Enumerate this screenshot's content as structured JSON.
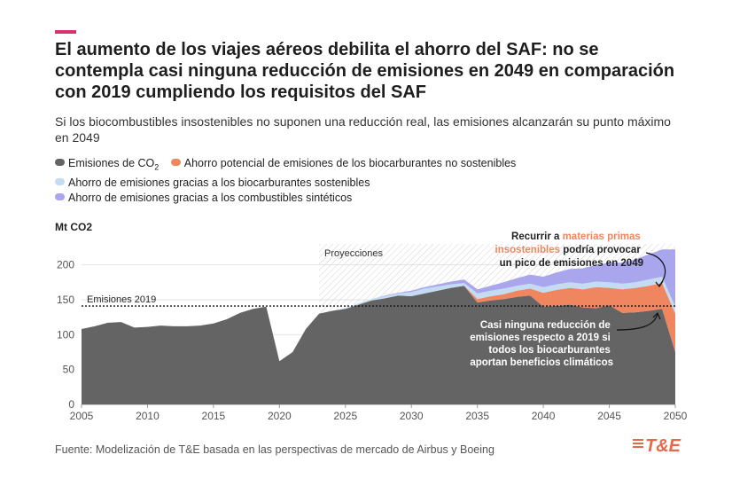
{
  "header": {
    "title": "El aumento de los viajes aéreos debilita el ahorro del SAF: no se contempla casi ninguna reducción de emisiones en 2049 en comparación con 2019 cumpliendo los requisitos del SAF",
    "subtitle": "Si los biocombustibles insostenibles no suponen una reducción real, las emisiones alcanzarán su punto máximo en 2049",
    "accent_color": "#d6336c"
  },
  "legend": {
    "item_co2_prefix": "Emisiones de CO",
    "item_co2_sub": "2",
    "item_unsust": "Ahorro potencial de emisiones de los biocarburantes no sostenibles",
    "item_sust": "Ahorro de emisiones gracias a los biocarburantes sostenibles",
    "item_synth": "Ahorro de emisiones gracias a los combustibles sintéticos"
  },
  "colors": {
    "co2": "#646464",
    "unsust": "#f0865f",
    "sust": "#c4dcf2",
    "synth": "#a9a6ee"
  },
  "chart_data": {
    "type": "area",
    "ylabel": "Mt CO2",
    "ylim": [
      0,
      230
    ],
    "xlim": [
      2005,
      2050
    ],
    "yticks": [
      "0",
      "50",
      "100",
      "150",
      "200"
    ],
    "ytick_values": [
      0,
      50,
      100,
      150,
      200
    ],
    "xticks": [
      "2005",
      "2010",
      "2015",
      "2020",
      "2025",
      "2030",
      "2035",
      "2040",
      "2045",
      "2050"
    ],
    "xtick_values": [
      2005,
      2010,
      2015,
      2020,
      2025,
      2030,
      2035,
      2040,
      2045,
      2050
    ],
    "grid": true,
    "x": [
      2005,
      2006,
      2007,
      2008,
      2009,
      2010,
      2011,
      2012,
      2013,
      2014,
      2015,
      2016,
      2017,
      2018,
      2019,
      2020,
      2021,
      2022,
      2023,
      2024,
      2025,
      2026,
      2027,
      2028,
      2029,
      2030,
      2031,
      2032,
      2033,
      2034,
      2035,
      2036,
      2037,
      2038,
      2039,
      2040,
      2041,
      2042,
      2043,
      2044,
      2045,
      2046,
      2047,
      2048,
      2049,
      2050
    ],
    "series": [
      {
        "name": "Emisiones de CO2",
        "values": [
          108,
          112,
          117,
          118,
          110,
          111,
          113,
          112,
          112,
          113,
          116,
          122,
          131,
          137,
          140,
          62,
          75,
          108,
          130,
          134,
          137,
          143,
          149,
          152,
          156,
          155,
          159,
          163,
          167,
          170,
          146,
          149,
          151,
          154,
          156,
          140,
          141,
          143,
          139,
          138,
          142,
          131,
          132,
          134,
          137,
          75
        ]
      },
      {
        "name": "Ahorro potencial de emisiones de los biocarburantes no sostenibles",
        "values": [
          0,
          0,
          0,
          0,
          0,
          0,
          0,
          0,
          0,
          0,
          0,
          0,
          0,
          0,
          0,
          0,
          0,
          0,
          0,
          0,
          0,
          0,
          0,
          0,
          0,
          0,
          0,
          0,
          0,
          0,
          5,
          6,
          7,
          9,
          10,
          20,
          23,
          24,
          26,
          30,
          25,
          34,
          35,
          36,
          37,
          55
        ]
      },
      {
        "name": "Ahorro de emisiones gracias a los biocarburantes sostenibles",
        "values": [
          0,
          0,
          0,
          0,
          0,
          0,
          0,
          0,
          0,
          0,
          0,
          0,
          0,
          0,
          0,
          0,
          0,
          0,
          0,
          0,
          1,
          2,
          2,
          3,
          3,
          6,
          7,
          6,
          5,
          4,
          8,
          8,
          8,
          7,
          7,
          8,
          8,
          8,
          8,
          8,
          8,
          8,
          8,
          9,
          9,
          10
        ]
      },
      {
        "name": "Ahorro de emisiones gracias a los combustibles sintéticos",
        "values": [
          0,
          0,
          0,
          0,
          0,
          0,
          0,
          0,
          0,
          0,
          0,
          0,
          0,
          0,
          0,
          0,
          0,
          0,
          0,
          0,
          0,
          0,
          0,
          1,
          1,
          2,
          2,
          3,
          4,
          5,
          6,
          7,
          9,
          11,
          13,
          15,
          17,
          19,
          22,
          24,
          28,
          30,
          33,
          36,
          39,
          82
        ]
      }
    ],
    "reference_line": {
      "label": "Emisiones 2019",
      "value": 141
    },
    "projection": {
      "label": "Proyecciones",
      "start": 2023,
      "end": 2050
    },
    "annotations": {
      "top_pre": "Recurrir a ",
      "top_hl1": "materias primas",
      "top_hl2": "insostenibles",
      "top_post": " podría provocar",
      "top_line3": "un pico de emisiones en 2049",
      "bottom_lines": [
        "Casi ninguna reducción de",
        "emisiones respecto a 2019 si",
        "todos los biocarburantes",
        "aportan beneficios climáticos"
      ]
    }
  },
  "footer": {
    "source": "Fuente: Modelización de T&E basada en las perspectivas de mercado de Airbus y Boeing",
    "logo": "T&E"
  }
}
